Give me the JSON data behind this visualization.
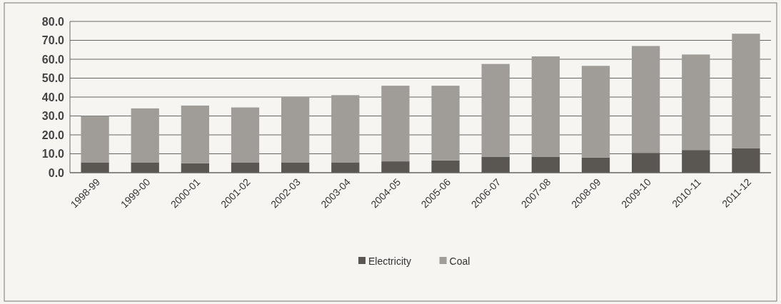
{
  "chart_data": {
    "type": "bar",
    "stacked": true,
    "categories": [
      "1998-99",
      "1999-00",
      "2000-01",
      "2001-02",
      "2002-03",
      "2003-04",
      "2004-05",
      "2005-06",
      "2006-07",
      "2007-08",
      "2008-09",
      "2009-10",
      "2010-11",
      "2011-12"
    ],
    "series": [
      {
        "name": "Electricity",
        "color": "#5a5652",
        "values": [
          5.5,
          5.5,
          5,
          5.5,
          5.5,
          5.5,
          6,
          6.5,
          8.5,
          8.5,
          8,
          10.5,
          12,
          13
        ]
      },
      {
        "name": "Coal",
        "color": "#a09d99",
        "values": [
          24.5,
          28.5,
          30.5,
          29,
          34.5,
          35.5,
          40,
          39.5,
          49,
          53,
          48.5,
          56.5,
          50.5,
          60.5
        ]
      }
    ],
    "ylim": [
      0,
      80
    ],
    "yticks": [
      {
        "value": 0,
        "label": "0.0"
      },
      {
        "value": 10,
        "label": "10.0"
      },
      {
        "value": 20,
        "label": "20.0"
      },
      {
        "value": 30,
        "label": "30.0"
      },
      {
        "value": 40,
        "label": "40.0"
      },
      {
        "value": 50,
        "label": "50.0"
      },
      {
        "value": 60,
        "label": "60.0"
      },
      {
        "value": 70,
        "label": "70.0"
      },
      {
        "value": 80,
        "label": "80.0"
      }
    ],
    "grid": "y",
    "legend": "bottom"
  }
}
